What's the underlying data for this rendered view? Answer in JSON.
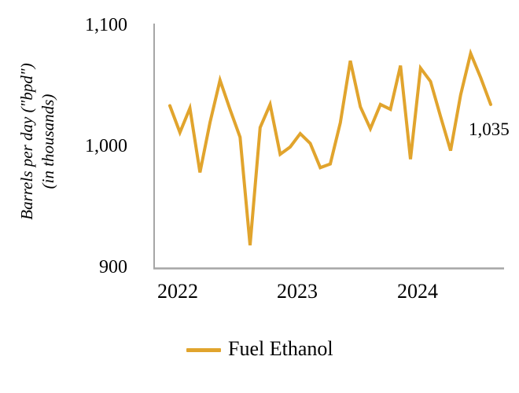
{
  "chart_data": {
    "type": "line",
    "title": "",
    "categories": [
      "Jan 2022",
      "Feb 2022",
      "Mar 2022",
      "Apr 2022",
      "May 2022",
      "Jun 2022",
      "Jul 2022",
      "Aug 2022",
      "Sep 2022",
      "Oct 2022",
      "Nov 2022",
      "Dec 2022",
      "Jan 2023",
      "Feb 2023",
      "Mar 2023",
      "Apr 2023",
      "May 2023",
      "Jun 2023",
      "Jul 2023",
      "Aug 2023",
      "Sep 2023",
      "Oct 2023",
      "Nov 2023",
      "Dec 2023",
      "Jan 2024",
      "Feb 2024",
      "Mar 2024",
      "Apr 2024",
      "May 2024",
      "Jun 2024",
      "Jul 2024",
      "Aug 2024",
      "Sep 2024"
    ],
    "series": [
      {
        "name": "Fuel Ethanol",
        "color": "#E1A42D",
        "values": [
          1034,
          1012,
          1032,
          979,
          1020,
          1055,
          1031,
          1008,
          919,
          1016,
          1035,
          994,
          1000,
          1011,
          1003,
          983,
          986,
          1020,
          1071,
          1033,
          1015,
          1035,
          1031,
          1067,
          990,
          1065,
          1054,
          1025,
          997,
          1043,
          1077,
          1057,
          1035
        ]
      }
    ],
    "ylabel_line1": "Barrels per day (\"bpd\")",
    "ylabel_line2": "(in thousands)",
    "xlabel": "",
    "ylim": [
      900,
      1100
    ],
    "grid": false,
    "legend_position": "bottom",
    "axis_color": "#A6A6A6",
    "yticks": [
      {
        "label": "1,100",
        "value": 1100
      },
      {
        "label": "1,000",
        "value": 1000
      },
      {
        "label": "900",
        "value": 900
      }
    ],
    "xticks": [
      {
        "label": "2022"
      },
      {
        "label": "2023"
      },
      {
        "label": "2024"
      }
    ],
    "last_point_label": "1,035"
  }
}
